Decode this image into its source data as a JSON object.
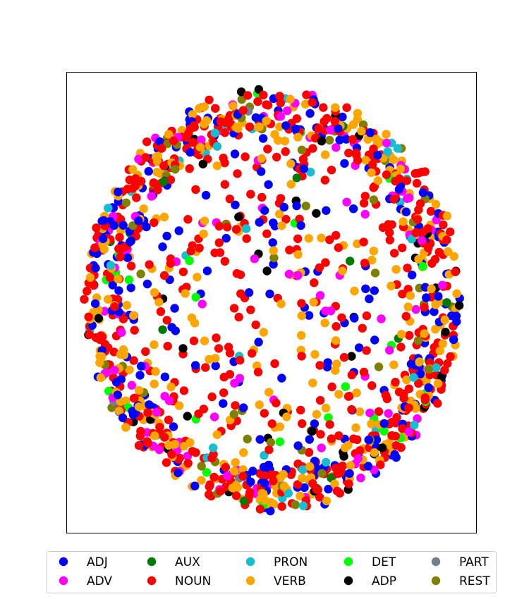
{
  "chart_data": {
    "type": "scatter",
    "title": "",
    "xlabel": "",
    "ylabel": "",
    "grid": false,
    "axes_ticks": false,
    "legend_position": "bottom",
    "legend_columns": 5,
    "series": [
      {
        "name": "ADJ",
        "color": "#0000ff",
        "count": 260
      },
      {
        "name": "ADV",
        "color": "#ff00ff",
        "count": 110
      },
      {
        "name": "AUX",
        "color": "#007a00",
        "count": 14
      },
      {
        "name": "NOUN",
        "color": "#ff0000",
        "count": 560
      },
      {
        "name": "PRON",
        "color": "#17becf",
        "count": 40
      },
      {
        "name": "VERB",
        "color": "#ffa500",
        "count": 330
      },
      {
        "name": "DET",
        "color": "#00ff00",
        "count": 26
      },
      {
        "name": "ADP",
        "color": "#000000",
        "count": 45
      },
      {
        "name": "PART",
        "color": "#708090",
        "count": 4
      },
      {
        "name": "REST",
        "color": "#808000",
        "count": 55
      }
    ],
    "legend_order": [
      "ADJ",
      "ADV",
      "AUX",
      "NOUN",
      "PRON",
      "VERB",
      "DET",
      "ADP",
      "PART",
      "REST"
    ],
    "distribution": "points filled in a roughly circular cloud, densest near the rim",
    "xlim": [
      -1.1,
      1.1
    ],
    "ylim": [
      -1.15,
      1.15
    ]
  }
}
